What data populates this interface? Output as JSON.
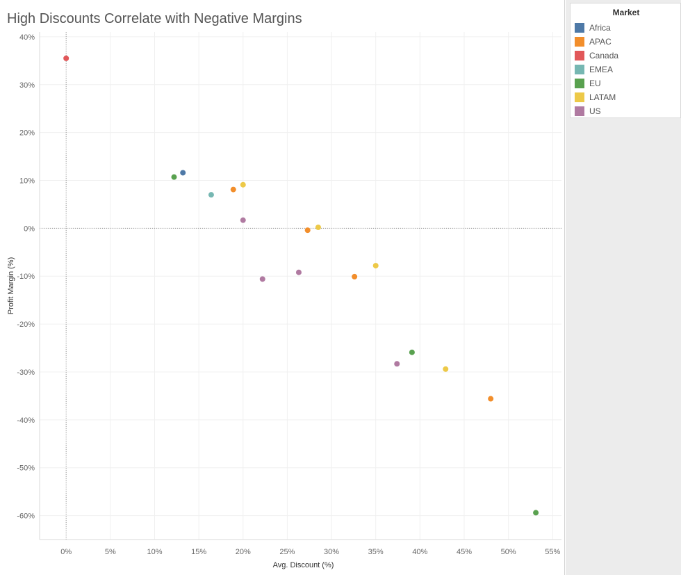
{
  "window": {
    "title": "High Discounts Correlate with Negative Margins"
  },
  "legend": {
    "title": "Market",
    "items": [
      {
        "label": "Africa",
        "color": "#4e79a7"
      },
      {
        "label": "APAC",
        "color": "#f28e2b"
      },
      {
        "label": "Canada",
        "color": "#e15759"
      },
      {
        "label": "EMEA",
        "color": "#76b7b2"
      },
      {
        "label": "EU",
        "color": "#59a14f"
      },
      {
        "label": "LATAM",
        "color": "#edc948"
      },
      {
        "label": "US",
        "color": "#b07aa1"
      }
    ]
  },
  "chart_data": {
    "type": "scatter",
    "title": "High Discounts Correlate with Negative Margins",
    "xlabel": "Avg. Discount (%)",
    "ylabel": "Profit Margin (%)",
    "xlim": [
      -3,
      56
    ],
    "ylim": [
      -65,
      41
    ],
    "x_ticks": [
      0,
      5,
      10,
      15,
      20,
      25,
      30,
      35,
      40,
      45,
      50,
      55
    ],
    "x_tick_labels": [
      "0%",
      "5%",
      "10%",
      "15%",
      "20%",
      "25%",
      "30%",
      "35%",
      "40%",
      "45%",
      "50%",
      "55%"
    ],
    "y_ticks": [
      40,
      30,
      20,
      10,
      0,
      -10,
      -20,
      -30,
      -40,
      -50,
      -60
    ],
    "y_tick_labels": [
      "40%",
      "30%",
      "20%",
      "10%",
      "0%",
      "-10%",
      "-20%",
      "-30%",
      "-40%",
      "-50%",
      "-60%"
    ],
    "grid": true,
    "reference_lines": {
      "x": 0,
      "y": 0
    },
    "legend_position": "top-right",
    "series": [
      {
        "name": "Africa",
        "color": "#4e79a7",
        "points": [
          {
            "x": 13.2,
            "y": 11.6
          }
        ]
      },
      {
        "name": "APAC",
        "color": "#f28e2b",
        "points": [
          {
            "x": 18.9,
            "y": 8.1
          },
          {
            "x": 27.3,
            "y": -0.4
          },
          {
            "x": 32.6,
            "y": -10.1
          },
          {
            "x": 48.0,
            "y": -35.6
          }
        ]
      },
      {
        "name": "Canada",
        "color": "#e15759",
        "points": [
          {
            "x": 0.0,
            "y": 35.5
          }
        ]
      },
      {
        "name": "EMEA",
        "color": "#76b7b2",
        "points": [
          {
            "x": 16.4,
            "y": 7.0
          }
        ]
      },
      {
        "name": "EU",
        "color": "#59a14f",
        "points": [
          {
            "x": 12.2,
            "y": 10.7
          },
          {
            "x": 39.1,
            "y": -25.9
          },
          {
            "x": 53.1,
            "y": -59.4
          }
        ]
      },
      {
        "name": "LATAM",
        "color": "#edc948",
        "points": [
          {
            "x": 20.0,
            "y": 9.1
          },
          {
            "x": 28.5,
            "y": 0.2
          },
          {
            "x": 35.0,
            "y": -7.8
          },
          {
            "x": 42.9,
            "y": -29.4
          }
        ]
      },
      {
        "name": "US",
        "color": "#b07aa1",
        "points": [
          {
            "x": 20.0,
            "y": 1.7
          },
          {
            "x": 22.2,
            "y": -10.6
          },
          {
            "x": 26.3,
            "y": -9.2
          },
          {
            "x": 37.4,
            "y": -28.3
          }
        ]
      }
    ]
  }
}
